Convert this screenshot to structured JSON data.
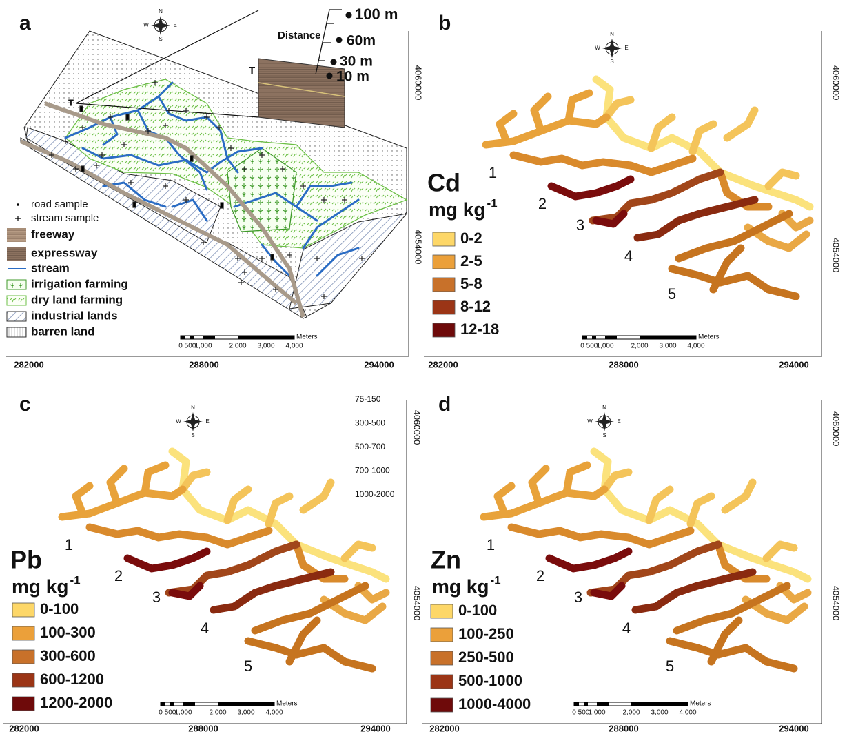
{
  "compass": {
    "n": "N",
    "s": "S",
    "w": "W",
    "e": "E"
  },
  "scale_bar": {
    "ticks": [
      "0",
      "500",
      "1,000",
      "2,000",
      "3,000",
      "4,000"
    ],
    "unit": "Meters"
  },
  "easting": [
    "282000",
    "288000",
    "294000"
  ],
  "northing": [
    "4060000",
    "4054000"
  ],
  "panels": [
    {
      "label": "a",
      "inset": {
        "title": "Distance",
        "distances": [
          "100 m",
          "60m",
          "30 m",
          "10 m"
        ],
        "marker": "T"
      },
      "section_marker": "T",
      "legend": [
        "road sample",
        "stream sample",
        "freeway",
        "expressway",
        "stream",
        "irrigation farming",
        "dry land farming",
        "industrial lands",
        "barren land"
      ]
    },
    {
      "label": "b",
      "element": "Cd",
      "unit": "mg kg",
      "unit_exponent": "-1",
      "legend": [
        "0-2",
        "2-5",
        "5-8",
        "8-12",
        "12-18"
      ],
      "streams": [
        "1",
        "2",
        "3",
        "4",
        "5"
      ]
    },
    {
      "label": "c",
      "element": "Pb",
      "unit": "mg kg",
      "unit_exponent": "-1",
      "legend": [
        "0-100",
        "100-300",
        "300-600",
        "600-1200",
        "1200-2000"
      ],
      "streams": [
        "1",
        "2",
        "3",
        "4",
        "5"
      ],
      "residual_labels": [
        "75-150",
        "300-500",
        "500-700",
        "700-1000",
        "1000-2000"
      ]
    },
    {
      "label": "d",
      "element": "Zn",
      "unit": "mg kg",
      "unit_exponent": "-1",
      "legend": [
        "0-100",
        "100-250",
        "250-500",
        "500-1000",
        "1000-4000"
      ],
      "streams": [
        "1",
        "2",
        "3",
        "4",
        "5"
      ]
    }
  ]
}
